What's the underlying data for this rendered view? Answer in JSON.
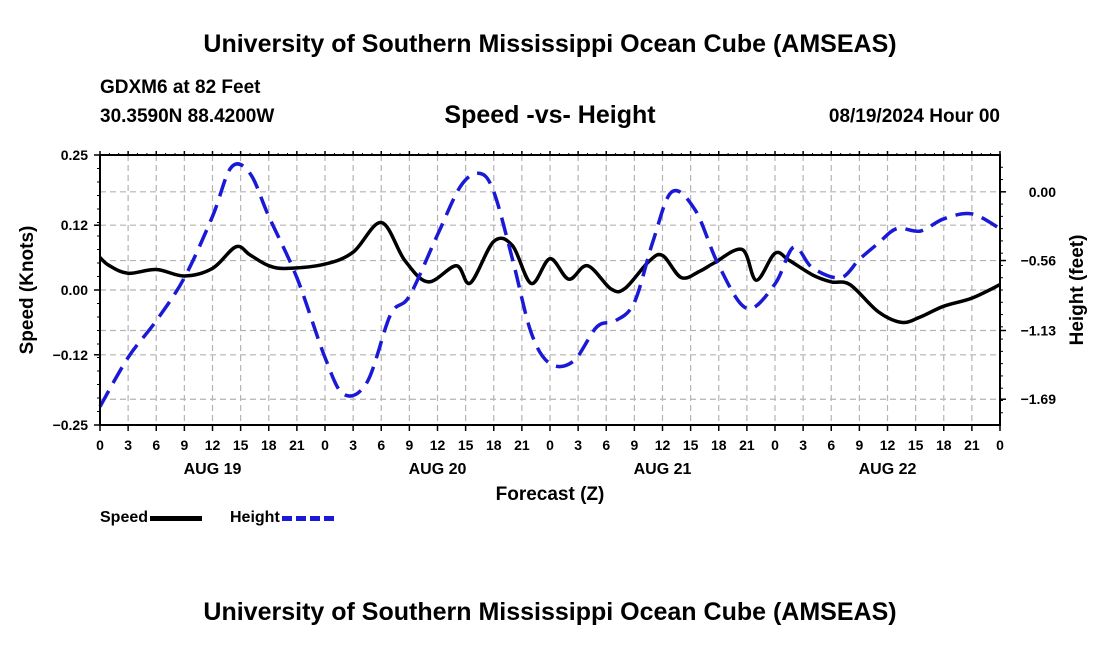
{
  "header": {
    "title": "University of Southern Mississippi Ocean Cube (AMSEAS)",
    "station": "GDXM6 at 82 Feet",
    "coords": "30.3590N  88.4200W",
    "subtitle": "Speed -vs- Height",
    "datetime": "08/19/2024 Hour 00"
  },
  "footer": {
    "title": "University of Southern Mississippi Ocean Cube (AMSEAS)"
  },
  "legend": {
    "speed_label": "Speed",
    "height_label": "Height"
  },
  "colors": {
    "speed": "#000000",
    "height": "#1a1ad6",
    "grid": "#b4b4b4"
  },
  "chart_data": {
    "type": "line",
    "title": "Speed -vs- Height",
    "xlabel": "Forecast (Z)",
    "ylabel": "Speed (Knots)",
    "y2label": "Height (feet)",
    "x_range_hours": [
      0,
      96
    ],
    "ylim": [
      -0.25,
      0.25
    ],
    "y2lim": [
      -1.9,
      0.3
    ],
    "y_ticks": [
      0.25,
      0.12,
      0.0,
      -0.12,
      -0.25
    ],
    "y_tick_labels": [
      "0.25",
      "0.12",
      "0.00",
      "−0.12",
      "−0.25"
    ],
    "y2_ticks": [
      0.0,
      -0.56,
      -1.13,
      -1.69
    ],
    "y2_tick_labels": [
      "0.00",
      "−0.56",
      "−1.13",
      "−1.69"
    ],
    "x_ticks": [
      0,
      3,
      6,
      9,
      12,
      15,
      18,
      21,
      24,
      27,
      30,
      33,
      36,
      39,
      42,
      45,
      48,
      51,
      54,
      57,
      60,
      63,
      66,
      69,
      72,
      75,
      78,
      81,
      84,
      87,
      90,
      93,
      96
    ],
    "x_tick_labels": [
      "0",
      "3",
      "6",
      "9",
      "12",
      "15",
      "18",
      "21",
      "0",
      "3",
      "6",
      "9",
      "12",
      "15",
      "18",
      "21",
      "0",
      "3",
      "6",
      "9",
      "12",
      "15",
      "18",
      "21",
      "0",
      "3",
      "6",
      "9",
      "12",
      "15",
      "18",
      "21",
      "0"
    ],
    "day_labels": [
      {
        "label": "AUG 19",
        "hour": 12
      },
      {
        "label": "AUG 20",
        "hour": 36
      },
      {
        "label": "AUG 21",
        "hour": 60
      },
      {
        "label": "AUG 22",
        "hour": 84
      }
    ],
    "grid": true,
    "series": [
      {
        "name": "Speed",
        "axis": "left",
        "style": "solid",
        "x": [
          0,
          1,
          3,
          6,
          9,
          12,
          14.5,
          16,
          18,
          20,
          24,
          27,
          30,
          32.5,
          35,
          38,
          39.5,
          42,
          44,
          46,
          48,
          50,
          52,
          54.5,
          56,
          58.5,
          60,
          62,
          64,
          65.5,
          68.5,
          70,
          72,
          73.5,
          76,
          78,
          80,
          83,
          85.5,
          87.5,
          90,
          93,
          96
        ],
        "values": [
          0.06,
          0.045,
          0.031,
          0.038,
          0.026,
          0.04,
          0.08,
          0.065,
          0.045,
          0.04,
          0.048,
          0.07,
          0.125,
          0.055,
          0.015,
          0.045,
          0.013,
          0.09,
          0.082,
          0.012,
          0.058,
          0.02,
          0.045,
          0.002,
          0.003,
          0.052,
          0.064,
          0.023,
          0.035,
          0.05,
          0.075,
          0.018,
          0.068,
          0.055,
          0.028,
          0.015,
          0.01,
          -0.04,
          -0.06,
          -0.05,
          -0.03,
          -0.015,
          0.01
        ]
      },
      {
        "name": "Height",
        "axis": "right",
        "style": "dashed",
        "x": [
          0,
          3,
          6,
          9,
          12,
          14,
          16,
          18,
          21,
          24,
          26,
          28.5,
          31,
          33,
          36,
          38.5,
          40.5,
          42,
          44,
          46,
          48,
          50.5,
          53,
          55,
          57,
          59,
          61,
          63.5,
          66,
          69,
          72,
          74,
          76,
          79,
          81,
          83,
          85,
          87.5,
          90,
          93,
          96
        ],
        "values": [
          -1.75,
          -1.35,
          -1.05,
          -0.7,
          -0.2,
          0.2,
          0.15,
          -0.2,
          -0.7,
          -1.35,
          -1.65,
          -1.55,
          -1.0,
          -0.85,
          -0.35,
          0.05,
          0.15,
          0.0,
          -0.55,
          -1.15,
          -1.4,
          -1.38,
          -1.1,
          -1.05,
          -0.9,
          -0.4,
          0.0,
          -0.15,
          -0.6,
          -0.95,
          -0.75,
          -0.45,
          -0.62,
          -0.7,
          -0.55,
          -0.42,
          -0.3,
          -0.32,
          -0.22,
          -0.18,
          -0.3
        ]
      }
    ]
  }
}
